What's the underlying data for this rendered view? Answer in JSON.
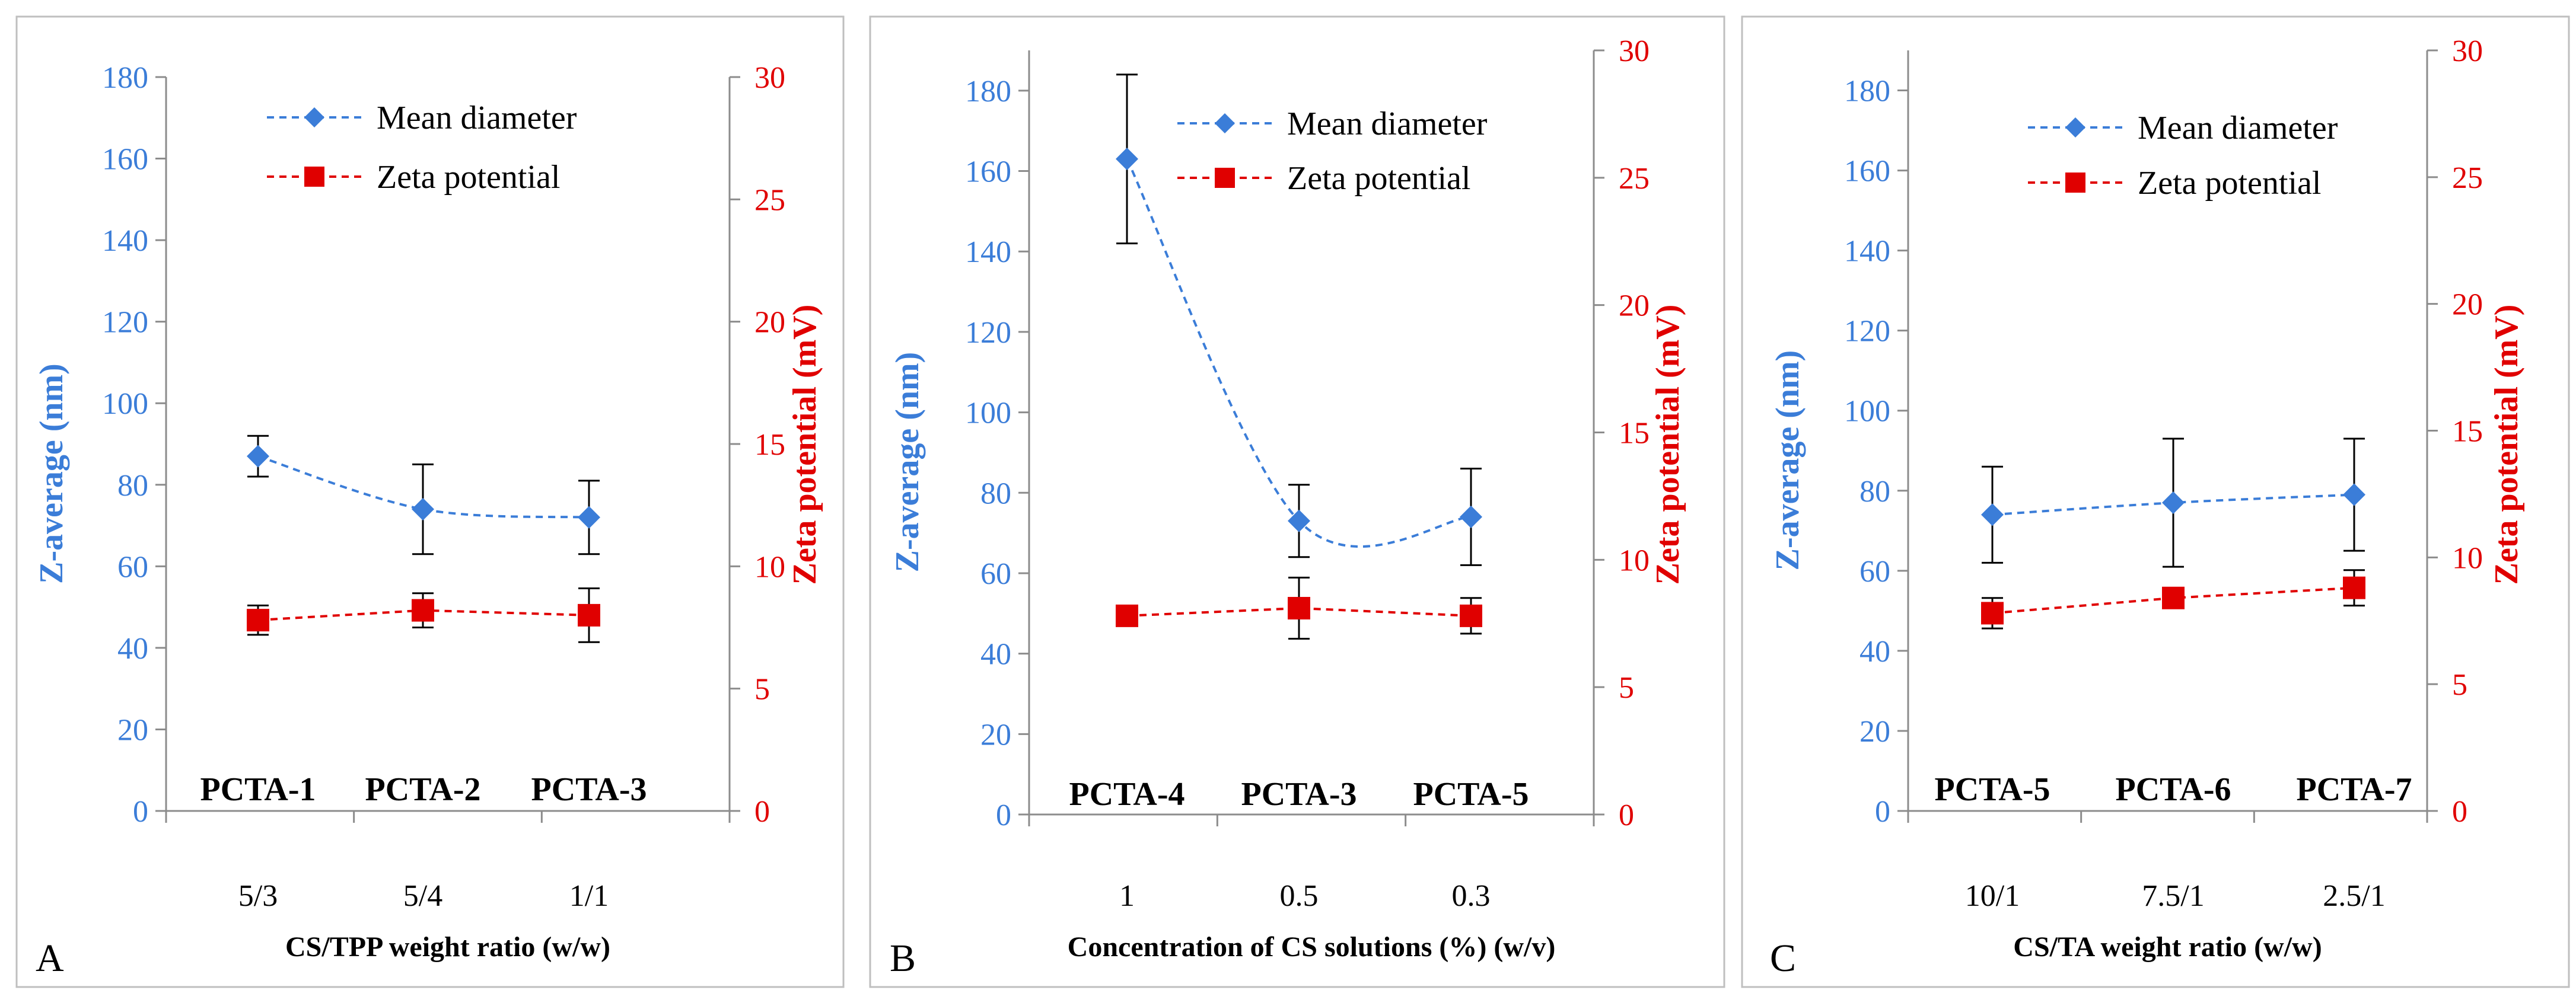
{
  "colors": {
    "diameter": "#3B7DD8",
    "zeta": "#E00000",
    "axis": "#8C8C8C",
    "text": "#000000",
    "frame": "#BFBFBF"
  },
  "chart_data": [
    {
      "type": "line",
      "panel_label": "A",
      "categories": [
        "5/3",
        "5/4",
        "1/1"
      ],
      "sample_labels": [
        "PCTA-1",
        "PCTA-2",
        "PCTA-3"
      ],
      "xlabel": "CS/TPP weight ratio (w/w)",
      "ylabel_left": "Z-average (nm)",
      "ylabel_right": "Zeta potential (mV)",
      "ylim_left": [
        0,
        180
      ],
      "ylim_right": [
        0,
        30
      ],
      "yticks_left": [
        "0",
        "20",
        "40",
        "60",
        "80",
        "100",
        "120",
        "140",
        "160",
        "180"
      ],
      "yticks_right": [
        "0",
        "5",
        "10",
        "15",
        "20",
        "25",
        "30"
      ],
      "legend": [
        "Mean diameter",
        "Zeta potential"
      ],
      "series": [
        {
          "name": "Mean diameter",
          "axis": "left",
          "marker": "diamond",
          "values": [
            87,
            74,
            72
          ],
          "errors": [
            5,
            11,
            9
          ]
        },
        {
          "name": "Zeta potential",
          "axis": "right",
          "marker": "square",
          "values": [
            7.8,
            8.2,
            8.0
          ],
          "errors": [
            0.6,
            0.7,
            1.1
          ]
        }
      ]
    },
    {
      "type": "line",
      "panel_label": "B",
      "categories": [
        "1",
        "0.5",
        "0.3"
      ],
      "sample_labels": [
        "PCTA-4",
        "PCTA-3",
        "PCTA-5"
      ],
      "xlabel": "Concentration of CS solutions (%) (w/v)",
      "ylabel_left": "Z-average (nm)",
      "ylabel_right": "Zeta potential (mV)",
      "ylim_left": [
        0,
        190
      ],
      "ylim_right": [
        0,
        30
      ],
      "yticks_left": [
        "0",
        "20",
        "40",
        "60",
        "80",
        "100",
        "120",
        "140",
        "160",
        "180"
      ],
      "yticks_right": [
        "0",
        "5",
        "10",
        "15",
        "20",
        "25",
        "30"
      ],
      "legend": [
        "Mean diameter",
        "Zeta potential"
      ],
      "series": [
        {
          "name": "Mean diameter",
          "axis": "left",
          "marker": "diamond",
          "values": [
            163,
            73,
            74
          ],
          "errors": [
            21,
            9,
            12
          ]
        },
        {
          "name": "Zeta potential",
          "axis": "right",
          "marker": "square",
          "values": [
            7.8,
            8.1,
            7.8
          ],
          "errors": [
            0,
            1.2,
            0.7
          ]
        }
      ]
    },
    {
      "type": "line",
      "panel_label": "C",
      "categories": [
        "10/1",
        "7.5/1",
        "2.5/1"
      ],
      "sample_labels": [
        "PCTA-5",
        "PCTA-6",
        "PCTA-7"
      ],
      "xlabel": "CS/TA weight ratio (w/w)",
      "ylabel_left": "Z-average (nm)",
      "ylabel_right": "Zeta potential (mV)",
      "ylim_left": [
        0,
        190
      ],
      "ylim_right": [
        0,
        30
      ],
      "yticks_left": [
        "0",
        "20",
        "40",
        "60",
        "80",
        "100",
        "120",
        "140",
        "160",
        "180"
      ],
      "yticks_right": [
        "0",
        "5",
        "10",
        "15",
        "20",
        "25",
        "30"
      ],
      "legend": [
        "Mean diameter",
        "Zeta potential"
      ],
      "series": [
        {
          "name": "Mean diameter",
          "axis": "left",
          "marker": "diamond",
          "values": [
            74,
            77,
            79
          ],
          "errors": [
            12,
            16,
            14
          ]
        },
        {
          "name": "Zeta potential",
          "axis": "right",
          "marker": "square",
          "values": [
            7.8,
            8.4,
            8.8
          ],
          "errors": [
            0.6,
            0,
            0.7
          ]
        }
      ]
    }
  ]
}
